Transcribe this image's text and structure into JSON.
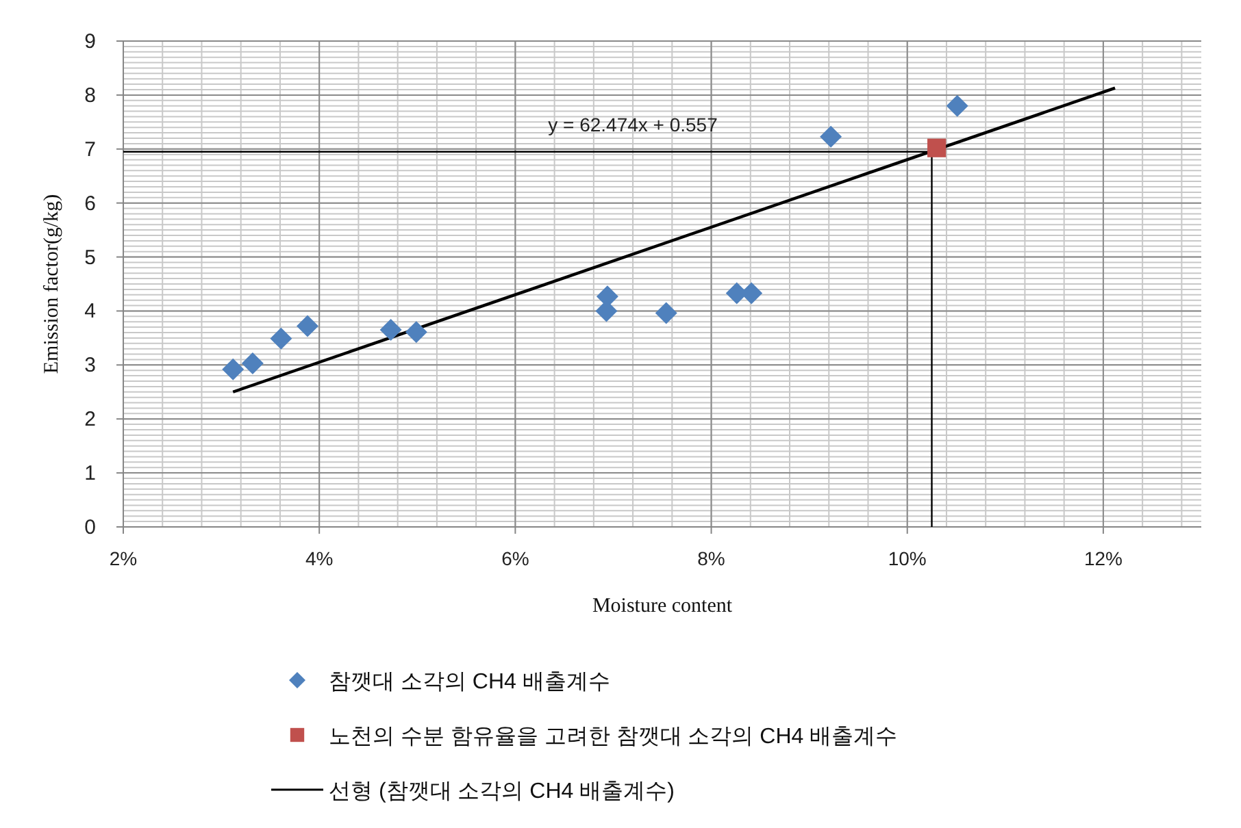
{
  "chart_data": {
    "type": "scatter",
    "xlabel": "Moisture content",
    "ylabel": "Emission factor(g/kg)",
    "xlim": [
      0.02,
      0.13
    ],
    "xticks": [
      {
        "value": 0.02,
        "label": "2%"
      },
      {
        "value": 0.04,
        "label": "4%"
      },
      {
        "value": 0.06,
        "label": "6%"
      },
      {
        "value": 0.08,
        "label": "8%"
      },
      {
        "value": 0.1,
        "label": "10%"
      },
      {
        "value": 0.12,
        "label": "12%"
      }
    ],
    "ylim": [
      0,
      9
    ],
    "yticks": [
      0,
      1,
      2,
      3,
      4,
      5,
      6,
      7,
      8,
      9
    ],
    "grid": true,
    "legend": "bottom",
    "series": [
      {
        "name": "참깻대 소각의 CH4 배출계수",
        "type": "scatter",
        "marker": "diamond",
        "color": "#4f81bd",
        "x": [
          0.0312,
          0.0332,
          0.0361,
          0.0388,
          0.0473,
          0.0499,
          0.0694,
          0.0693,
          0.0754,
          0.0826,
          0.0841,
          0.0922,
          0.1051
        ],
        "values": [
          2.92,
          3.03,
          3.49,
          3.72,
          3.65,
          3.61,
          4.27,
          4.0,
          3.96,
          4.33,
          4.33,
          7.23,
          7.8
        ]
      },
      {
        "name": "노천의 수분 함유율을 고려한 참깻대 소각의 CH4 배출계수",
        "type": "scatter",
        "marker": "square",
        "color": "#c0504d",
        "x": [
          0.103
        ],
        "values": [
          7.02
        ]
      },
      {
        "name": "선형 (참깻대 소각의 CH4 배출계수)",
        "type": "line",
        "marker": "none",
        "color": "#000000",
        "x": [
          0.0312,
          0.1212
        ],
        "values": [
          2.5,
          8.13
        ]
      }
    ],
    "ref_lines": [
      {
        "axis": "x",
        "value": 0.1025,
        "color": "#000000"
      },
      {
        "axis": "y",
        "value": 6.95,
        "color": "#000000"
      }
    ],
    "annotations": [
      "y = 62.474x + 0.557"
    ]
  }
}
